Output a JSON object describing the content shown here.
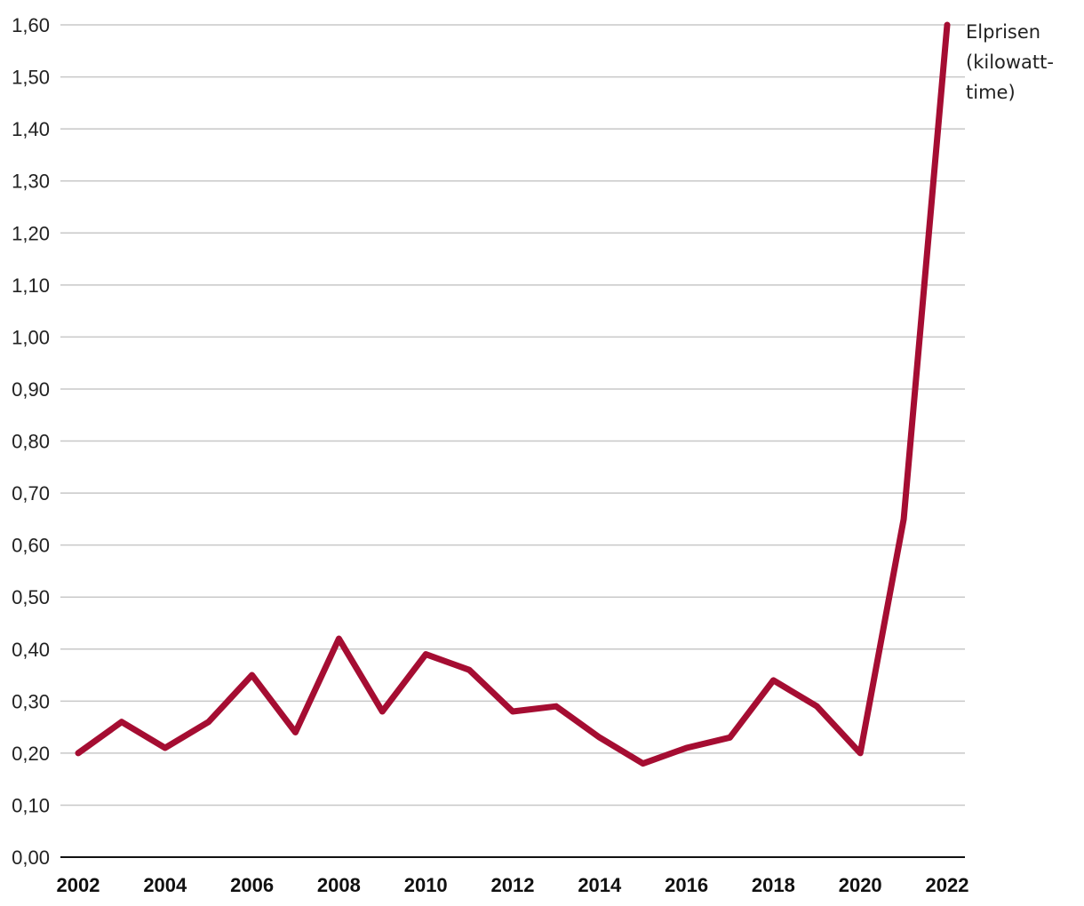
{
  "chart_data": {
    "type": "line",
    "title": "",
    "xlabel": "",
    "ylabel": "",
    "x": [
      2002,
      2003,
      2004,
      2005,
      2006,
      2007,
      2008,
      2009,
      2010,
      2011,
      2012,
      2013,
      2014,
      2015,
      2016,
      2017,
      2018,
      2019,
      2020,
      2021,
      2022
    ],
    "x_ticks": [
      "2002",
      "2004",
      "2006",
      "2008",
      "2010",
      "2012",
      "2014",
      "2016",
      "2018",
      "2020",
      "2022"
    ],
    "y_ticks": [
      "0,00",
      "0,10",
      "0,20",
      "0,30",
      "0,40",
      "0,50",
      "0,60",
      "0,70",
      "0,80",
      "0,90",
      "1,00",
      "1,10",
      "1,20",
      "1,30",
      "1,40",
      "1,50",
      "1,60"
    ],
    "ylim": [
      0,
      1.6
    ],
    "xlim": [
      2002,
      2022
    ],
    "grid": true,
    "series": [
      {
        "name": "Elprisen (kilowatt-time)",
        "label_lines": [
          "Elprisen",
          "(kilowatt-",
          "time)"
        ],
        "color": "#a50d32",
        "values": [
          0.2,
          0.26,
          0.21,
          0.26,
          0.35,
          0.24,
          0.42,
          0.28,
          0.39,
          0.36,
          0.28,
          0.29,
          0.23,
          0.18,
          0.21,
          0.23,
          0.34,
          0.29,
          0.2,
          0.65,
          1.6
        ]
      }
    ]
  }
}
